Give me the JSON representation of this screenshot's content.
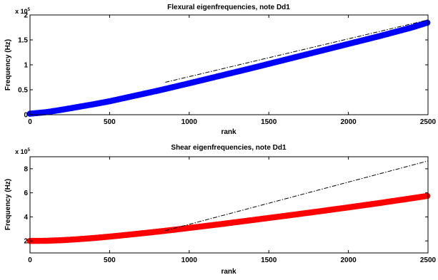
{
  "chart_data": [
    {
      "type": "scatter",
      "title": "Flexural eigenfrequencies, note Dd1",
      "xlabel": "rank",
      "ylabel": "Frequency (Hz)",
      "xlim": [
        0,
        2500
      ],
      "ylim": [
        0,
        200000
      ],
      "xticks": [
        0,
        500,
        1000,
        1500,
        2000,
        2500
      ],
      "xtick_labels": [
        "0",
        "500",
        "1000",
        "1500",
        "2000",
        "2500"
      ],
      "yticks": [
        0,
        50000,
        100000,
        150000,
        200000
      ],
      "ytick_labels": [
        "0",
        "0.5",
        "1",
        "1.5",
        "2"
      ],
      "y_exponent_label": "x 10",
      "y_exponent_power": "5",
      "grid": false,
      "series": [
        {
          "color": "#0000ff",
          "marker": "circle",
          "x": [
            0,
            100,
            200,
            300,
            400,
            500,
            600,
            700,
            800,
            900,
            1000,
            1200,
            1400,
            1600,
            1800,
            2000,
            2200,
            2400,
            2500
          ],
          "y": [
            2000,
            5000,
            10000,
            15500,
            21000,
            27000,
            34000,
            41000,
            48000,
            55500,
            63000,
            78500,
            94000,
            110000,
            126000,
            142000,
            158000,
            175000,
            185000
          ]
        },
        {
          "color": "#000000",
          "line_style": "dash-dot",
          "x": [
            850,
            2500
          ],
          "y": [
            65000,
            190000
          ]
        }
      ]
    },
    {
      "type": "scatter",
      "title": "Shear eigenfrequencies, note Dd1",
      "xlabel": "rank",
      "ylabel": "Frequency (Hz)",
      "xlim": [
        0,
        2500
      ],
      "ylim": [
        100000,
        900000
      ],
      "xticks": [
        0,
        500,
        1000,
        1500,
        2000,
        2500
      ],
      "xtick_labels": [
        "0",
        "500",
        "1000",
        "1500",
        "2000",
        "2500"
      ],
      "yticks": [
        200000,
        400000,
        600000,
        800000
      ],
      "ytick_labels": [
        "2",
        "4",
        "6",
        "8"
      ],
      "y_exponent_label": "x 10",
      "y_exponent_power": "5",
      "grid": false,
      "series": [
        {
          "color": "#ff0000",
          "marker": "circle",
          "x": [
            0,
            100,
            200,
            300,
            400,
            500,
            600,
            700,
            800,
            900,
            1000,
            1200,
            1400,
            1600,
            1800,
            2000,
            2200,
            2400,
            2500
          ],
          "y": [
            200000,
            201000,
            206000,
            214000,
            224000,
            236000,
            249000,
            263000,
            277000,
            292000,
            308000,
            340000,
            374000,
            408000,
            443000,
            479000,
            516000,
            555000,
            575000
          ]
        },
        {
          "color": "#000000",
          "line_style": "dash-dot",
          "x": [
            850,
            2500
          ],
          "y": [
            285000,
            865000
          ]
        }
      ]
    }
  ]
}
